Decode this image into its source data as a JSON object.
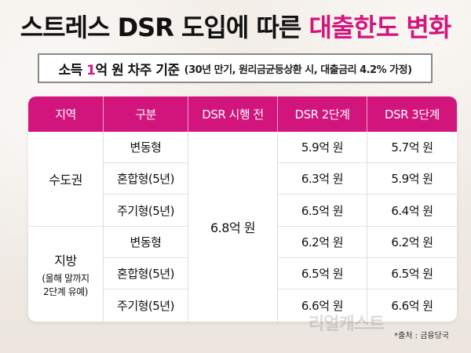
{
  "title": {
    "part1": "스트레스 DSR 도입",
    "part2": "에 따른 ",
    "part3": "대출한도 변화"
  },
  "subtitle": {
    "prefix": "소득 ",
    "highlight": "1",
    "suffix": "억 원 차주 기준",
    "note": "(30년 만기, 원리금균등상환 시, 대출금리 4.2% 가정)"
  },
  "table": {
    "headers": [
      "지역",
      "구분",
      "DSR 시행 전",
      "DSR 2단계",
      "DSR 3단계"
    ],
    "before_value": "6.8억 원",
    "regions": [
      {
        "name": "수도권",
        "note": "",
        "rows": [
          {
            "type": "변동형",
            "dsr2": "5.9억 원",
            "dsr3": "5.7억 원"
          },
          {
            "type": "혼합형(5년)",
            "dsr2": "6.3억 원",
            "dsr3": "5.9억 원"
          },
          {
            "type": "주기형(5년)",
            "dsr2": "6.5억 원",
            "dsr3": "6.4억 원"
          }
        ]
      },
      {
        "name": "지방",
        "note": "(올해 말까지\n2단계 유예)",
        "rows": [
          {
            "type": "변동형",
            "dsr2": "6.2억 원",
            "dsr3": "6.2억 원"
          },
          {
            "type": "혼합형(5년)",
            "dsr2": "6.5억 원",
            "dsr3": "6.5억 원"
          },
          {
            "type": "주기형(5년)",
            "dsr2": "6.6억 원",
            "dsr3": "6.6억 원"
          }
        ]
      }
    ]
  },
  "watermark": "리얼캐스트",
  "source": "*출처 : 금융당국",
  "colors": {
    "accent": "#d2157d",
    "background": "#efe9e3"
  }
}
